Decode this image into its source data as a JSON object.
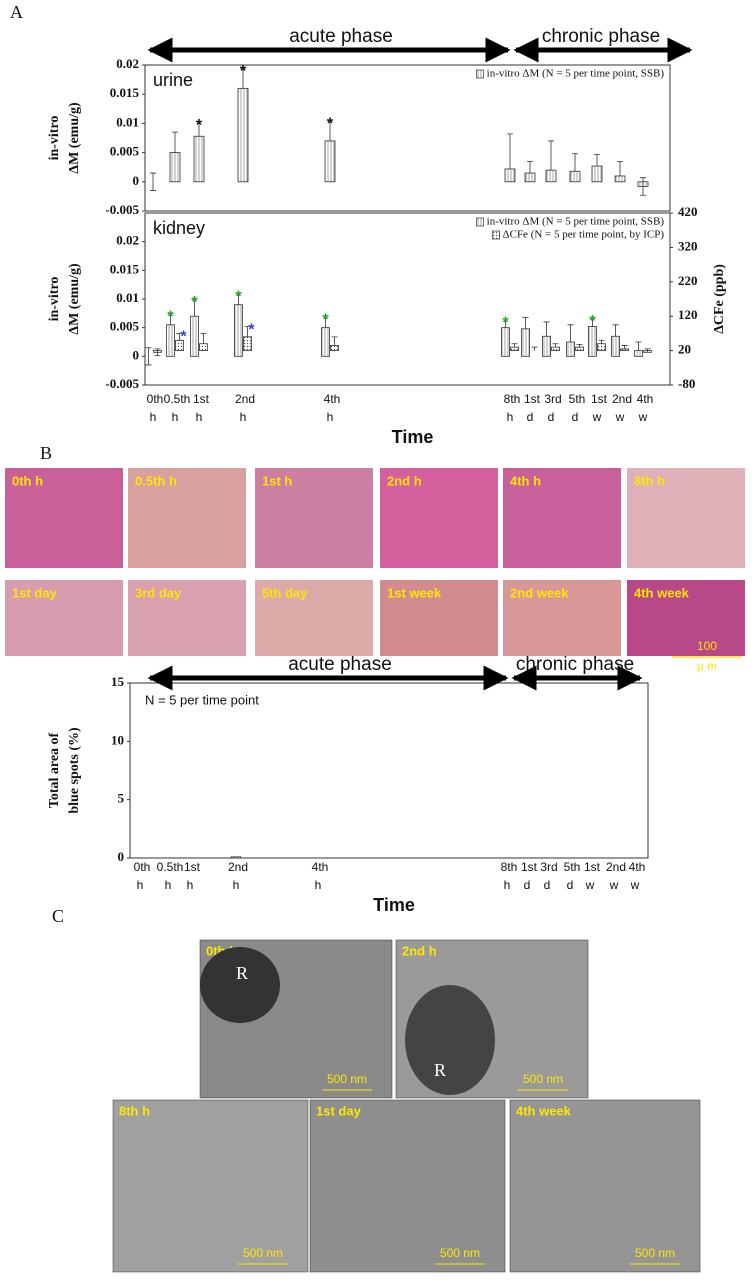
{
  "panel_labels": [
    "A",
    "B",
    "C"
  ],
  "chart_data": [
    {
      "type": "bar",
      "annotation": "urine",
      "phases": [
        "acute phase",
        "chronic phase"
      ],
      "ylabel_lines": [
        "in-vitro",
        "ΔM (emu/g)"
      ],
      "ylim": [
        -0.005,
        0.02
      ],
      "yticks": [
        -0.005,
        0,
        0.005,
        0.01,
        0.015,
        0.02
      ],
      "series": [
        {
          "name": "in-vitro ΔM (N = 5 per time point, SSB)",
          "color": "#ffffff",
          "marker_color": "#111111",
          "values": [
            0,
            0.005,
            0.0078,
            0.016,
            0.007,
            0.0022,
            0.0015,
            0.002,
            0.0018,
            0.0027,
            0.001,
            -0.0008
          ],
          "errors": [
            0.0015,
            0.0035,
            0.0025,
            0.0035,
            0.0035,
            0.006,
            0.002,
            0.005,
            0.003,
            0.002,
            0.0025,
            0.0015
          ],
          "markers": [
            null,
            null,
            "*",
            "*",
            "*",
            null,
            null,
            null,
            null,
            null,
            null,
            null
          ]
        }
      ]
    },
    {
      "type": "bar",
      "annotation": "kidney",
      "ylabel_lines": [
        "in-vitro",
        "ΔM (emu/g)"
      ],
      "y2label": "ΔCFe (ppb)",
      "xlabel": "Time",
      "categories": [
        "0th",
        "0.5th",
        "1st",
        "2nd",
        "4th",
        "8th",
        "1st",
        "3rd",
        "5th",
        "1st",
        "2nd",
        "4th"
      ],
      "category_units": [
        "h",
        "h",
        "h",
        "h",
        "h",
        "h",
        "d",
        "d",
        "d",
        "w",
        "w",
        "w"
      ],
      "ylim": [
        -0.005,
        0.025
      ],
      "yticks": [
        -0.005,
        0,
        0.005,
        0.01,
        0.015,
        0.02
      ],
      "y2lim": [
        -80,
        420
      ],
      "y2ticks": [
        -80,
        20,
        120,
        220,
        320,
        420
      ],
      "series": [
        {
          "name": "in-vitro ΔM (N = 5 per time point, SSB)",
          "color": "#ffffff",
          "marker_color": "#22aa22",
          "values": [
            0,
            0.0055,
            0.007,
            0.009,
            0.005,
            0.005,
            0.0048,
            0.0035,
            0.0025,
            0.0052,
            0.0035,
            0.001
          ],
          "errors": [
            0.0015,
            0.002,
            0.003,
            0.002,
            0.002,
            0.0015,
            0.002,
            0.0025,
            0.003,
            0.0015,
            0.002,
            0.0015
          ],
          "markers": [
            null,
            "*",
            "*",
            "*",
            "*",
            "*",
            null,
            null,
            null,
            "*",
            null,
            null
          ]
        },
        {
          "name": "ΔCFe (N = 5 per time point, by ICP)",
          "color": "#dddddd",
          "marker_color": "#3344cc",
          "axis": "y2",
          "values": [
            15,
            50,
            40,
            60,
            35,
            30,
            20,
            30,
            30,
            40,
            25,
            15
          ],
          "errors": [
            10,
            20,
            30,
            30,
            25,
            10,
            10,
            10,
            8,
            10,
            10,
            10
          ],
          "markers": [
            null,
            "*",
            null,
            "*",
            null,
            null,
            null,
            null,
            null,
            null,
            null,
            null
          ]
        }
      ]
    },
    {
      "type": "bar",
      "annotation": "N = 5 per time point",
      "phases": [
        "acute phase",
        "chronic phase"
      ],
      "ylabel_lines": [
        "Total area of",
        "blue spots (%)"
      ],
      "xlabel": "Time",
      "categories": [
        "0th",
        "0.5th",
        "1st",
        "2nd",
        "4th",
        "8th",
        "1st",
        "3rd",
        "5th",
        "1st",
        "2nd",
        "4th"
      ],
      "category_units": [
        "h",
        "h",
        "h",
        "h",
        "h",
        "h",
        "d",
        "d",
        "d",
        "w",
        "w",
        "w"
      ],
      "ylim": [
        0,
        15
      ],
      "yticks": [
        0,
        5,
        10,
        15
      ],
      "series": [
        {
          "name": null,
          "color": "#ffffff",
          "marker_color": "#111111",
          "values": [
            0,
            0,
            0,
            0.1,
            0,
            0,
            0,
            0,
            0,
            0,
            0,
            0
          ]
        }
      ]
    }
  ],
  "micrographs_b": {
    "labels": [
      "0th h",
      "0.5th h",
      "1st h",
      "2nd h",
      "4th h",
      "8th h",
      "1st day",
      "3rd day",
      "5th day",
      "1st week",
      "2nd week",
      "4th week"
    ],
    "scale_bar": [
      "100",
      "μ m"
    ]
  },
  "micrographs_c": {
    "labels": [
      "0th h",
      "2nd h",
      "8th h",
      "1st day",
      "4th week"
    ],
    "inset": "R",
    "scale_bar": "500 nm"
  }
}
